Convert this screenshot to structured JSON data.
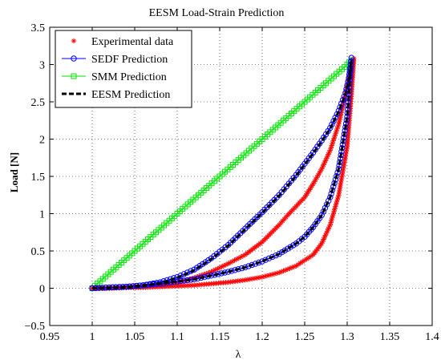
{
  "chart_data": {
    "type": "line",
    "title": "EESM Load-Strain Prediction",
    "xlabel": "λ",
    "ylabel": "Load [N]",
    "xlim": [
      0.95,
      1.4
    ],
    "ylim": [
      -0.5,
      3.5
    ],
    "xticks": [
      0.95,
      1.0,
      1.05,
      1.1,
      1.15,
      1.2,
      1.25,
      1.3,
      1.35,
      1.4
    ],
    "xtick_labels": [
      "0.95",
      "1",
      "1.05",
      "1.1",
      "1.15",
      "1.2",
      "1.25",
      "1.3",
      "1.35",
      "1.4"
    ],
    "yticks": [
      -0.5,
      0,
      0.5,
      1,
      1.5,
      2,
      2.5,
      3,
      3.5
    ],
    "ytick_labels": [
      "−0.5",
      "0",
      "0.5",
      "1",
      "1.5",
      "2",
      "2.5",
      "3",
      "3.5"
    ],
    "grid": true,
    "legend_position": "top-left",
    "series": [
      {
        "name": "Experimental data",
        "color": "#ff0000",
        "marker": "star",
        "line": "none",
        "x": [
          1.0,
          1.02,
          1.04,
          1.06,
          1.08,
          1.1,
          1.12,
          1.14,
          1.16,
          1.18,
          1.2,
          1.22,
          1.24,
          1.26,
          1.27,
          1.28,
          1.29,
          1.3,
          1.305,
          1.308,
          1.303,
          1.298,
          1.29,
          1.28,
          1.27,
          1.26,
          1.25,
          1.24,
          1.23,
          1.22,
          1.2,
          1.18,
          1.16,
          1.14,
          1.12,
          1.1,
          1.08,
          1.06,
          1.04,
          1.02,
          1.0
        ],
        "y": [
          0.0,
          0.0,
          0.01,
          0.01,
          0.02,
          0.03,
          0.04,
          0.06,
          0.08,
          0.11,
          0.15,
          0.21,
          0.3,
          0.45,
          0.6,
          0.85,
          1.25,
          1.9,
          2.6,
          3.08,
          2.9,
          2.6,
          2.2,
          1.85,
          1.6,
          1.4,
          1.22,
          1.1,
          0.98,
          0.85,
          0.62,
          0.45,
          0.33,
          0.22,
          0.14,
          0.08,
          0.05,
          0.03,
          0.01,
          0.0,
          0.0
        ]
      },
      {
        "name": "SEDF Prediction",
        "color": "#0000ff",
        "marker": "circle",
        "line": "solid",
        "x": [
          1.0,
          1.02,
          1.04,
          1.06,
          1.08,
          1.1,
          1.12,
          1.14,
          1.16,
          1.18,
          1.2,
          1.22,
          1.24,
          1.25,
          1.26,
          1.27,
          1.28,
          1.29,
          1.3,
          1.305,
          1.302,
          1.298,
          1.29,
          1.28,
          1.27,
          1.26,
          1.25,
          1.24,
          1.22,
          1.2,
          1.18,
          1.16,
          1.14,
          1.12,
          1.1,
          1.08,
          1.06,
          1.04,
          1.02,
          1.0
        ],
        "y": [
          0.0,
          0.01,
          0.02,
          0.04,
          0.06,
          0.09,
          0.12,
          0.17,
          0.22,
          0.28,
          0.36,
          0.46,
          0.6,
          0.69,
          0.82,
          0.98,
          1.22,
          1.6,
          2.3,
          3.09,
          2.82,
          2.62,
          2.38,
          2.15,
          1.98,
          1.82,
          1.67,
          1.52,
          1.25,
          1.02,
          0.8,
          0.58,
          0.4,
          0.25,
          0.15,
          0.08,
          0.04,
          0.02,
          0.01,
          0.0
        ]
      },
      {
        "name": "SMM Prediction",
        "color": "#00e600",
        "marker": "square",
        "line": "solid",
        "x": [
          1.0,
          1.05,
          1.1,
          1.15,
          1.2,
          1.25,
          1.3,
          1.305
        ],
        "y": [
          0.0,
          0.5,
          1.0,
          1.5,
          2.0,
          2.5,
          3.0,
          3.06
        ]
      },
      {
        "name": "EESM Prediction",
        "color": "#000000",
        "marker": "none",
        "line": "dashed",
        "x": [
          1.0,
          1.02,
          1.04,
          1.06,
          1.08,
          1.1,
          1.12,
          1.14,
          1.16,
          1.18,
          1.2,
          1.22,
          1.24,
          1.25,
          1.26,
          1.27,
          1.28,
          1.29,
          1.3,
          1.305,
          1.302,
          1.298,
          1.29,
          1.28,
          1.27,
          1.26,
          1.25,
          1.24,
          1.22,
          1.2,
          1.18,
          1.16,
          1.14,
          1.12,
          1.1,
          1.08,
          1.06,
          1.04,
          1.02,
          1.0
        ],
        "y": [
          0.0,
          0.01,
          0.02,
          0.04,
          0.06,
          0.09,
          0.12,
          0.17,
          0.22,
          0.28,
          0.36,
          0.46,
          0.6,
          0.69,
          0.82,
          0.98,
          1.22,
          1.6,
          2.3,
          3.06,
          2.8,
          2.6,
          2.37,
          2.14,
          1.97,
          1.81,
          1.66,
          1.51,
          1.24,
          1.01,
          0.79,
          0.57,
          0.39,
          0.24,
          0.14,
          0.07,
          0.03,
          0.01,
          0.0,
          0.0
        ]
      }
    ]
  }
}
